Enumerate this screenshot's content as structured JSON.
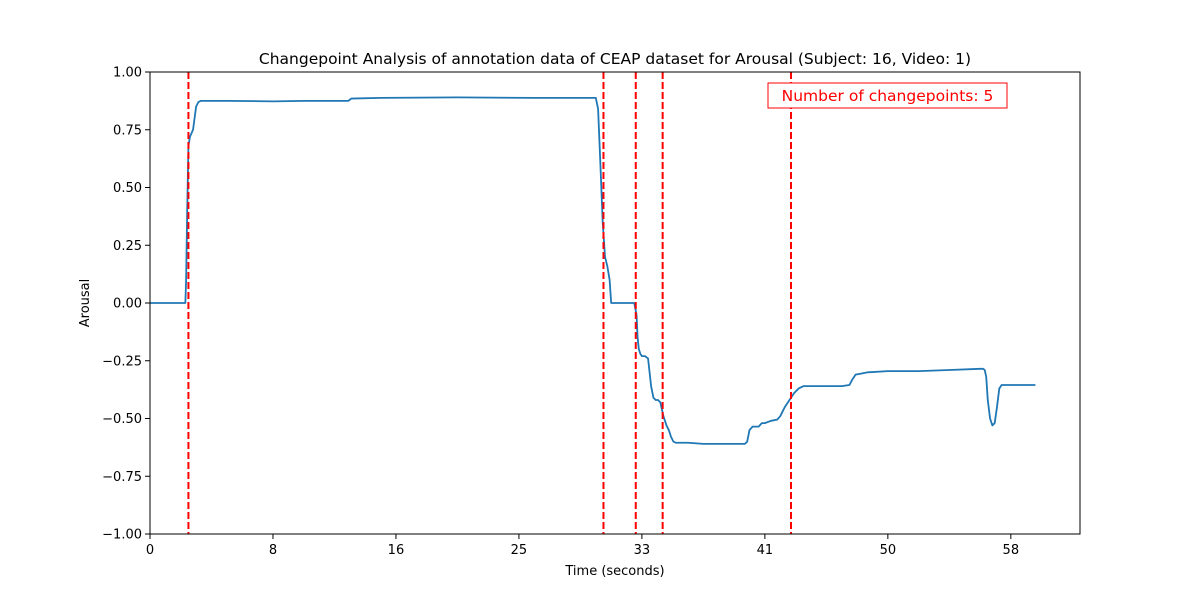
{
  "chart_data": {
    "type": "line",
    "title": "Changepoint Analysis of annotation data of CEAP dataset for Arousal (Subject: 16, Video: 1)",
    "xlabel": "Time (seconds)",
    "ylabel": "Arousal",
    "xlim": [
      0,
      60.5
    ],
    "ylim": [
      -1.0,
      1.0
    ],
    "x_tick_values": [
      0,
      8,
      16,
      24,
      32,
      40,
      48,
      56
    ],
    "x_tick_labels": [
      "0",
      "8",
      "16",
      "25",
      "33",
      "41",
      "50",
      "58"
    ],
    "y_tick_values": [
      -1.0,
      -0.75,
      -0.5,
      -0.25,
      0.0,
      0.25,
      0.5,
      0.75,
      1.0
    ],
    "y_tick_labels": [
      "−1.00",
      "−0.75",
      "−0.50",
      "−0.25",
      "0.00",
      "0.25",
      "0.50",
      "0.75",
      "1.00"
    ],
    "grid": false,
    "series": [
      {
        "color": "#1f77b4",
        "x": [
          0,
          2.3,
          2.35,
          2.42,
          2.5,
          2.6,
          2.8,
          3.0,
          3.15,
          3.3,
          5,
          8,
          10,
          12.9,
          13.1,
          15,
          20,
          25,
          29.0,
          29.15,
          29.3,
          29.45,
          29.6,
          29.75,
          29.9,
          30.0,
          30.15,
          30.35,
          30.5,
          31.5,
          31.65,
          31.72,
          31.8,
          31.9,
          32.0,
          32.2,
          32.4,
          32.6,
          32.75,
          32.9,
          33.05,
          33.2,
          33.4,
          33.6,
          33.75,
          33.9,
          34.05,
          34.2,
          34.4,
          34.6,
          34.8,
          35.0,
          36,
          38,
          38.7,
          38.85,
          39.0,
          39.2,
          39.6,
          39.8,
          40.0,
          40.4,
          40.8,
          41.0,
          41.3,
          41.6,
          41.9,
          42.2,
          42.5,
          42.8,
          43.5,
          44,
          45,
          45.5,
          45.7,
          45.9,
          46.3,
          46.7,
          48,
          50,
          52,
          54.0,
          54.2,
          54.3,
          54.4,
          54.5,
          54.65,
          54.8,
          54.95,
          55.1,
          55.25,
          55.4,
          55.7,
          57.6
        ],
        "y": [
          0.0,
          0.0,
          0.1,
          0.4,
          0.68,
          0.72,
          0.75,
          0.85,
          0.87,
          0.875,
          0.875,
          0.873,
          0.875,
          0.875,
          0.885,
          0.888,
          0.89,
          0.888,
          0.888,
          0.84,
          0.6,
          0.35,
          0.2,
          0.16,
          0.1,
          0.0,
          0.0,
          0.0,
          0.0,
          0.0,
          -0.05,
          -0.15,
          -0.2,
          -0.22,
          -0.23,
          -0.23,
          -0.24,
          -0.36,
          -0.41,
          -0.42,
          -0.42,
          -0.43,
          -0.49,
          -0.53,
          -0.55,
          -0.58,
          -0.6,
          -0.605,
          -0.605,
          -0.605,
          -0.605,
          -0.605,
          -0.61,
          -0.61,
          -0.61,
          -0.6,
          -0.55,
          -0.535,
          -0.535,
          -0.52,
          -0.52,
          -0.51,
          -0.505,
          -0.49,
          -0.45,
          -0.42,
          -0.39,
          -0.37,
          -0.36,
          -0.36,
          -0.36,
          -0.36,
          -0.36,
          -0.355,
          -0.33,
          -0.31,
          -0.305,
          -0.3,
          -0.295,
          -0.295,
          -0.29,
          -0.285,
          -0.285,
          -0.29,
          -0.32,
          -0.42,
          -0.5,
          -0.53,
          -0.52,
          -0.45,
          -0.37,
          -0.355,
          -0.355,
          -0.355
        ]
      }
    ],
    "changepoints": {
      "x": [
        2.5,
        29.5,
        31.6,
        33.35,
        41.7
      ],
      "color": "#ff0000",
      "style": "dashed"
    },
    "annotation": {
      "text": "Number of changepoints: 5",
      "position": "top-right",
      "color": "#ff0000"
    }
  }
}
